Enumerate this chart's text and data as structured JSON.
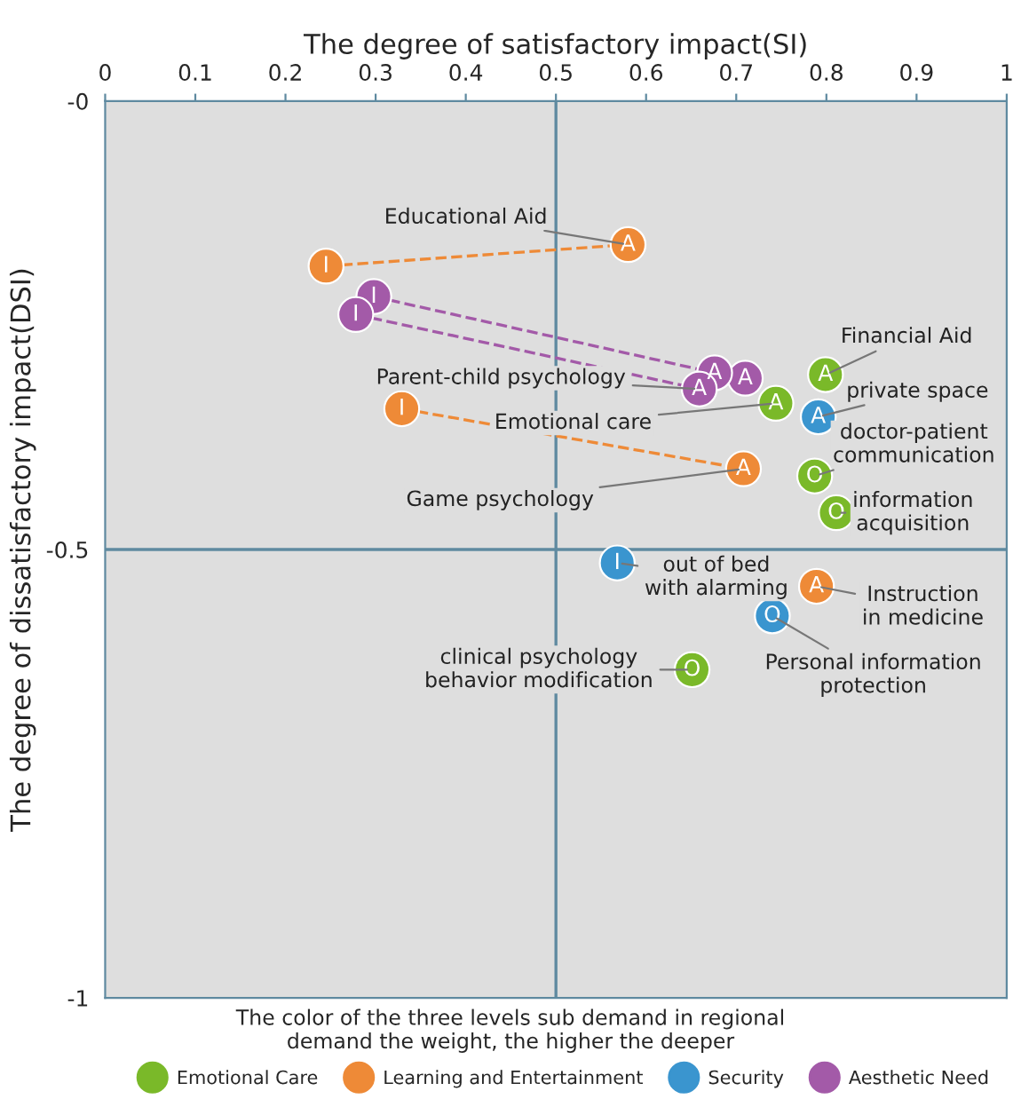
{
  "chart_data": {
    "type": "scatter",
    "xlabel": "The degree of satisfactory impact(SI)",
    "ylabel": "The degree of dissatisfactory impact(DSI)",
    "xlim": [
      0,
      1
    ],
    "xticks": [
      0,
      0.1,
      0.2,
      0.3,
      0.4,
      0.5,
      0.6,
      0.7,
      0.8,
      0.9,
      1
    ],
    "ylim": [
      -1,
      0
    ],
    "yticks": [
      {
        "value": -1,
        "label": "-1"
      },
      {
        "value": -0.5,
        "label": "-0.5"
      },
      {
        "value": 0,
        "label": "-0"
      }
    ],
    "grid": false,
    "legend": "bottom",
    "marker": "circle",
    "ref_lines": [
      {
        "axis": "x",
        "value": 0.5,
        "label": null,
        "color": "#5f8aa0"
      },
      {
        "axis": "y",
        "value": -0.5,
        "label": null,
        "color": "#5f8aa0"
      }
    ],
    "series": [
      {
        "type": "line",
        "marker": "none",
        "color": "#ee8a37",
        "line_style": "dashed",
        "x": [
          0.245,
          0.58
        ],
        "values": [
          -0.184,
          -0.16
        ]
      },
      {
        "type": "line",
        "marker": "none",
        "color": "#a35aa8",
        "line_style": "dashed",
        "x": [
          0.298,
          0.676
        ],
        "values": [
          -0.218,
          -0.303
        ]
      },
      {
        "type": "line",
        "marker": "none",
        "color": "#a35aa8",
        "line_style": "dashed",
        "x": [
          0.278,
          0.659
        ],
        "values": [
          -0.238,
          -0.321
        ]
      },
      {
        "type": "line",
        "marker": "none",
        "color": "#ee8a37",
        "line_style": "dashed",
        "x": [
          0.329,
          0.708
        ],
        "values": [
          -0.343,
          -0.41
        ]
      },
      {
        "name": "Emotional Care",
        "color": "#7ab929",
        "x": [
          0.744,
          0.799,
          0.787,
          0.811,
          0.651
        ],
        "values": [
          -0.337,
          -0.305,
          -0.418,
          -0.459,
          -0.634
        ],
        "value_labels": [
          "A",
          "A",
          "O",
          "O",
          "O"
        ]
      },
      {
        "name": "Learning and Entertainment",
        "color": "#ee8a37",
        "x": [
          0.245,
          0.58,
          0.329,
          0.708,
          0.789
        ],
        "values": [
          -0.184,
          -0.16,
          -0.343,
          -0.41,
          -0.541
        ],
        "value_labels": [
          "I",
          "A",
          "I",
          "A",
          "A"
        ]
      },
      {
        "name": "Security",
        "color": "#3a95cf",
        "x": [
          0.791,
          0.568,
          0.74
        ],
        "values": [
          -0.352,
          -0.515,
          -0.574
        ],
        "value_labels": [
          "A",
          "I",
          "O"
        ]
      },
      {
        "name": "Aesthetic Need",
        "color": "#a35aa8",
        "x": [
          0.298,
          0.278,
          0.71,
          0.676,
          0.659
        ],
        "values": [
          -0.218,
          -0.238,
          -0.309,
          -0.303,
          -0.321
        ],
        "value_labels": [
          "I",
          "I",
          "A",
          "A",
          "A"
        ]
      }
    ],
    "annotations": [
      {
        "text": "Educational Aid",
        "x": 0.58,
        "y": -0.16
      },
      {
        "text": "Parent-child psychology",
        "x": 0.659,
        "y": -0.321
      },
      {
        "text": "Emotional care",
        "x": 0.744,
        "y": -0.337
      },
      {
        "text": "Game psychology",
        "x": 0.708,
        "y": -0.41
      },
      {
        "text": "Financial Aid",
        "x": 0.799,
        "y": -0.305
      },
      {
        "text": "private space",
        "x": 0.791,
        "y": -0.352
      },
      {
        "text": "doctor-patient\ncommunication",
        "x": 0.787,
        "y": -0.418
      },
      {
        "text": "information\nacquisition",
        "x": 0.811,
        "y": -0.459
      },
      {
        "text": "out of bed\nwith alarming",
        "x": 0.568,
        "y": -0.515
      },
      {
        "text": "Instruction\nin medicine",
        "x": 0.789,
        "y": -0.541
      },
      {
        "text": "Personal information\nprotection",
        "x": 0.74,
        "y": -0.574
      },
      {
        "text": "clinical psychology\nbehavior modification",
        "x": 0.651,
        "y": -0.634
      },
      "The color of the three levels sub demand in regional\ndemand the weight, the higher the deeper"
    ]
  }
}
